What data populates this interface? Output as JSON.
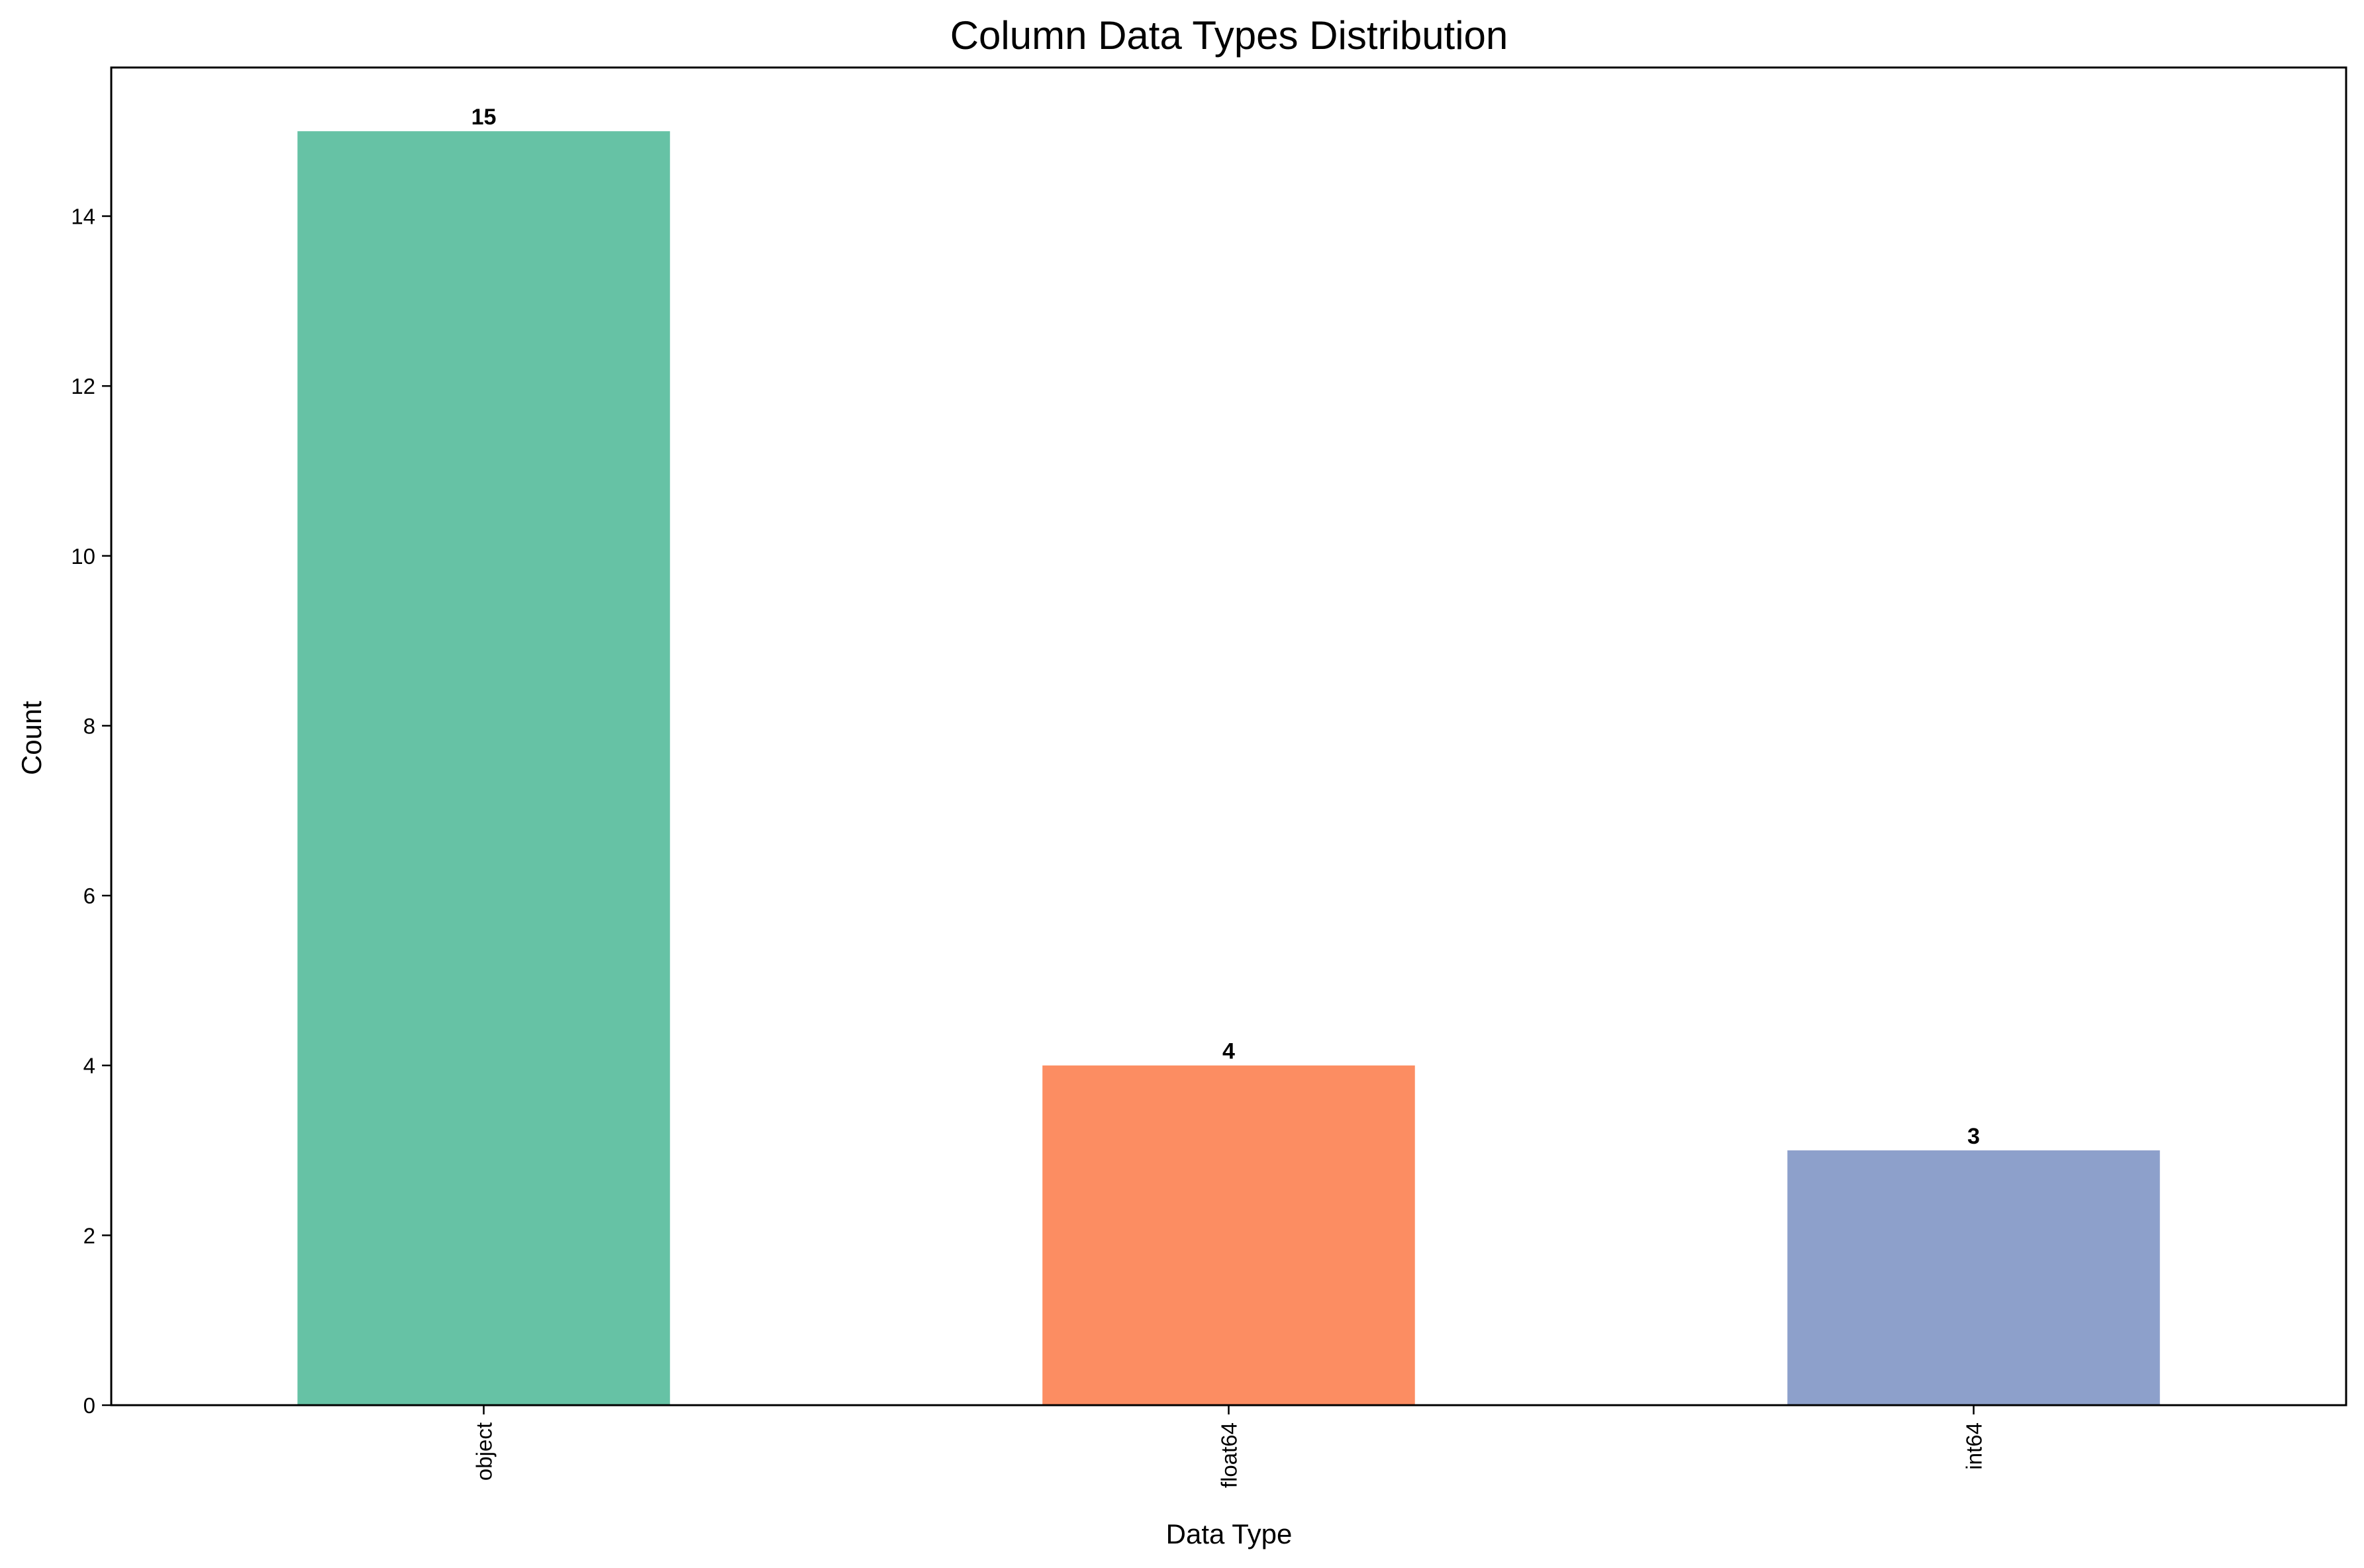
{
  "chart_data": {
    "type": "bar",
    "title": "Column Data Types Distribution",
    "xlabel": "Data Type",
    "ylabel": "Count",
    "categories": [
      "object",
      "float64",
      "int64"
    ],
    "values": [
      15,
      4,
      3
    ],
    "value_labels": [
      "15",
      "4",
      "3"
    ],
    "colors": [
      "#66c2a5",
      "#fc8d62",
      "#8da0cb"
    ],
    "ylim": [
      0,
      15.75
    ],
    "yticks": [
      0,
      2,
      4,
      6,
      8,
      10,
      12,
      14
    ],
    "ytick_labels": [
      "0",
      "2",
      "4",
      "6",
      "8",
      "10",
      "12",
      "14"
    ],
    "xtick_rotation": "vertical",
    "grid": false,
    "legend": "none"
  }
}
